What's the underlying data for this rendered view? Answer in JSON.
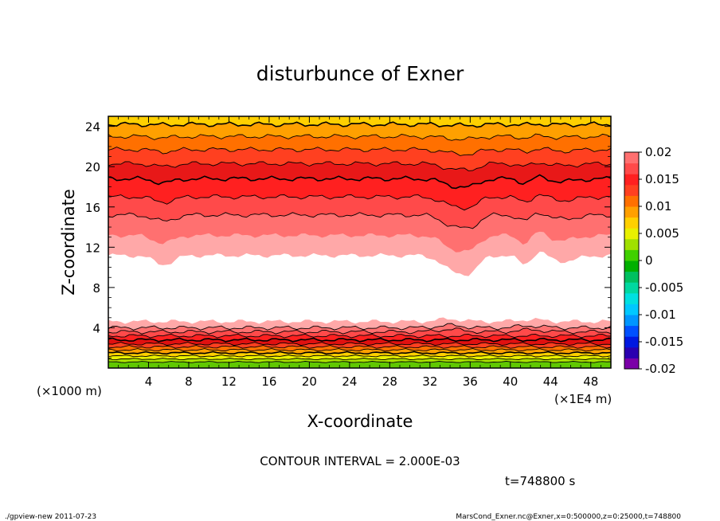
{
  "chart_data": {
    "type": "heatmap",
    "subtype": "filled contour",
    "title": "disturbunce of Exner",
    "xlabel": "X-coordinate",
    "ylabel": "Z-coordinate",
    "x_unit": "(×1E4 m)",
    "y_unit": "(×1000 m)",
    "x_ticks": [
      "4",
      "8",
      "12",
      "16",
      "20",
      "24",
      "28",
      "32",
      "36",
      "40",
      "44",
      "48"
    ],
    "y_ticks": [
      "4",
      "8",
      "12",
      "16",
      "20",
      "24"
    ],
    "xlim": [
      0,
      50
    ],
    "ylim": [
      0,
      25
    ],
    "contour_interval_text": "CONTOUR INTERVAL = 2.000E-03",
    "time_text": "t=748800 s",
    "colorbar": {
      "ticks": [
        "0.02",
        "0.015",
        "0.01",
        "0.005",
        "0",
        "-0.005",
        "-0.01",
        "-0.015",
        "-0.02"
      ],
      "range": [
        -0.02,
        0.02
      ],
      "levels": [
        -0.02,
        -0.018,
        -0.016,
        -0.014,
        -0.012,
        -0.01,
        -0.008,
        -0.006,
        -0.004,
        -0.002,
        0,
        0.002,
        0.004,
        0.006,
        0.008,
        0.01,
        0.012,
        0.014,
        0.016,
        0.018,
        0.02
      ],
      "colors": [
        "#7b00a8",
        "#2a00b0",
        "#0018e0",
        "#0050ff",
        "#0096ff",
        "#00c8ff",
        "#00e0e0",
        "#00d8a0",
        "#00c060",
        "#00b000",
        "#40d000",
        "#a0e000",
        "#e8f000",
        "#ffd000",
        "#ffa000",
        "#ff7000",
        "#ff4020",
        "#ff2020",
        "#ff4a4a",
        "#ff7070",
        "#ffa8a8"
      ]
    },
    "bands_low_z": {
      "z": [
        0.3,
        0.6,
        0.9,
        1.2,
        1.5,
        1.8,
        2.1,
        2.4,
        2.8,
        3.2,
        3.6,
        4.0,
        4.6
      ],
      "colors": [
        "#60c800",
        "#a8e000",
        "#e8f000",
        "#ffd000",
        "#ffa000",
        "#ff7000",
        "#ff4020",
        "#e01010",
        "#ff2020",
        "#ff4a4a",
        "#ff7070",
        "#ffa8a8"
      ]
    },
    "bands_high_z": {
      "z": [
        11.2,
        13.2,
        15.2,
        17.0,
        18.8,
        20.3,
        21.7,
        23.0,
        24.2,
        25.0
      ],
      "colors": [
        "#ffa8a8",
        "#ff7070",
        "#ff4a4a",
        "#ff2020",
        "#e81818",
        "#ff4020",
        "#ff7000",
        "#ffa000",
        "#ffd000"
      ]
    }
  },
  "footer": {
    "left": "./gpview-new   2011-07-23",
    "right": "MarsCond_Exner.nc@Exner,x=0:500000,z=0:25000,t=748800"
  }
}
